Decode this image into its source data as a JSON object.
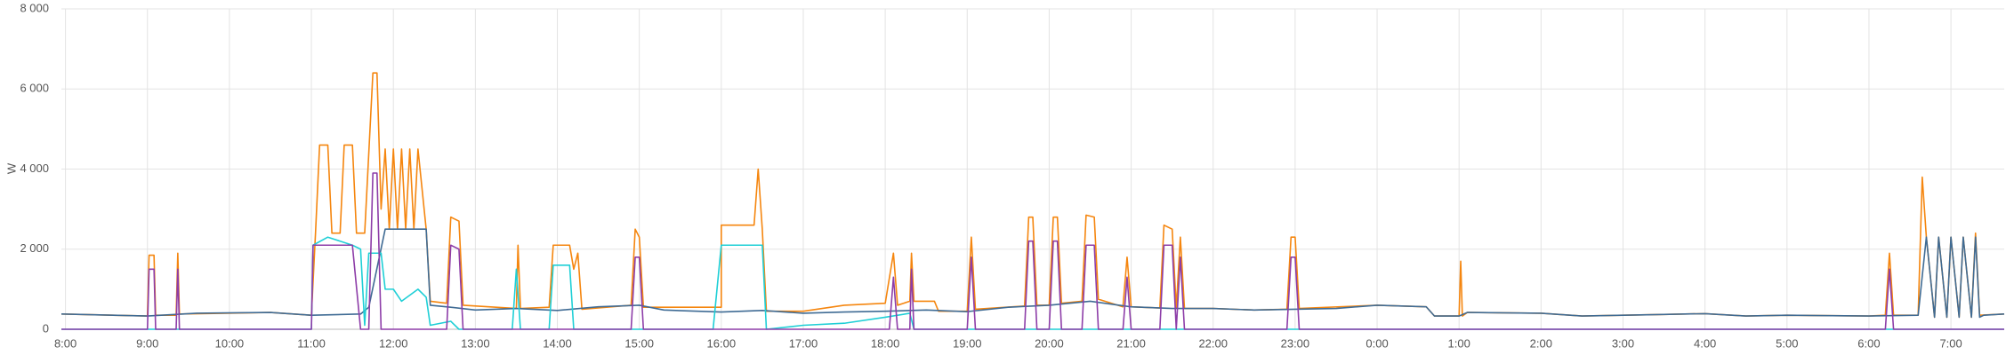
{
  "chart_data": {
    "type": "line",
    "y_label": "W",
    "xlim": [
      7.95,
      31.65
    ],
    "ylim": [
      0,
      8000
    ],
    "xticks": [
      {
        "value": 8,
        "label": "8:00"
      },
      {
        "value": 9,
        "label": "9:00"
      },
      {
        "value": 10,
        "label": "10:00"
      },
      {
        "value": 11,
        "label": "11:00"
      },
      {
        "value": 12,
        "label": "12:00"
      },
      {
        "value": 13,
        "label": "13:00"
      },
      {
        "value": 14,
        "label": "14:00"
      },
      {
        "value": 15,
        "label": "15:00"
      },
      {
        "value": 16,
        "label": "16:00"
      },
      {
        "value": 17,
        "label": "17:00"
      },
      {
        "value": 18,
        "label": "18:00"
      },
      {
        "value": 19,
        "label": "19:00"
      },
      {
        "value": 20,
        "label": "20:00"
      },
      {
        "value": 21,
        "label": "21:00"
      },
      {
        "value": 22,
        "label": "22:00"
      },
      {
        "value": 23,
        "label": "23:00"
      },
      {
        "value": 24,
        "label": "0:00"
      },
      {
        "value": 25,
        "label": "1:00"
      },
      {
        "value": 26,
        "label": "2:00"
      },
      {
        "value": 27,
        "label": "3:00"
      },
      {
        "value": 28,
        "label": "4:00"
      },
      {
        "value": 29,
        "label": "5:00"
      },
      {
        "value": 30,
        "label": "6:00"
      },
      {
        "value": 31,
        "label": "7:00"
      }
    ],
    "yticks": [
      0,
      {
        "value": 2000,
        "label": "2 000"
      },
      {
        "value": 4000,
        "label": "4 000"
      },
      {
        "value": 6000,
        "label": "6 000"
      },
      {
        "value": 8000,
        "label": "8 000"
      }
    ],
    "grid": true,
    "series": [
      {
        "color": "#f5860f",
        "x": [
          7.95,
          9.0,
          9.02,
          9.08,
          9.1,
          9.35,
          9.37,
          9.39,
          10.5,
          11.0,
          11.05,
          11.1,
          11.2,
          11.25,
          11.35,
          11.4,
          11.5,
          11.55,
          11.65,
          11.75,
          11.8,
          11.85,
          11.9,
          11.95,
          12.0,
          12.05,
          12.1,
          12.15,
          12.2,
          12.25,
          12.3,
          12.4,
          12.45,
          12.65,
          12.7,
          12.8,
          12.85,
          13.5,
          13.52,
          13.55,
          13.9,
          13.95,
          14.15,
          14.2,
          14.25,
          14.3,
          14.9,
          14.95,
          15.0,
          15.05,
          16.0,
          16.0,
          16.4,
          16.45,
          16.5,
          16.55,
          17.0,
          17.5,
          18.0,
          18.1,
          18.15,
          18.3,
          18.32,
          18.35,
          18.6,
          18.65,
          19.0,
          19.05,
          19.1,
          19.7,
          19.75,
          19.8,
          19.85,
          20.0,
          20.05,
          20.1,
          20.15,
          20.4,
          20.45,
          20.55,
          20.6,
          20.9,
          20.95,
          21.0,
          21.35,
          21.4,
          21.5,
          21.55,
          21.6,
          21.65,
          22.0,
          22.5,
          22.9,
          22.95,
          23.0,
          23.05,
          24.0,
          24.6,
          24.7,
          25.0,
          25.02,
          25.04,
          25.1,
          26.0,
          26.5,
          27.5,
          28.0,
          28.5,
          29.0,
          30.0,
          30.2,
          30.25,
          30.3,
          30.6,
          30.65,
          30.7,
          30.8,
          30.85,
          30.95,
          31.0,
          31.1,
          31.15,
          31.25,
          31.3,
          31.35,
          31.65
        ],
        "values": [
          380,
          330,
          1850,
          1850,
          350,
          350,
          1900,
          380,
          420,
          350,
          2400,
          4600,
          4600,
          2400,
          2400,
          4600,
          4600,
          2400,
          2400,
          6400,
          6400,
          3000,
          4500,
          2500,
          4500,
          2500,
          4500,
          2500,
          4500,
          2500,
          4500,
          2500,
          700,
          650,
          2800,
          2700,
          600,
          520,
          2100,
          520,
          550,
          2100,
          2100,
          1500,
          1900,
          500,
          600,
          2500,
          2300,
          550,
          550,
          2600,
          2600,
          4000,
          2500,
          450,
          450,
          600,
          650,
          1900,
          600,
          700,
          1900,
          700,
          700,
          450,
          450,
          2300,
          500,
          580,
          2800,
          2800,
          600,
          600,
          2800,
          2800,
          650,
          700,
          2850,
          2800,
          750,
          560,
          1800,
          560,
          530,
          2600,
          2500,
          530,
          2300,
          520,
          520,
          480,
          500,
          2300,
          2300,
          520,
          600,
          560,
          330,
          330,
          1700,
          330,
          420,
          400,
          330,
          370,
          390,
          330,
          350,
          330,
          350,
          1900,
          350,
          350,
          3800,
          2300,
          300,
          2300,
          300,
          2300,
          300,
          2300,
          300,
          2400,
          350,
          380
        ]
      },
      {
        "color": "#3f6b94",
        "x": [
          7.95,
          9.0,
          9.6,
          10.5,
          11.0,
          11.6,
          11.7,
          11.9,
          12.4,
          12.45,
          12.7,
          13.0,
          13.5,
          14.0,
          14.5,
          15.0,
          15.3,
          16.0,
          16.5,
          17.0,
          17.5,
          18.0,
          18.5,
          19.0,
          19.5,
          20.0,
          20.5,
          21.0,
          21.5,
          22.0,
          22.5,
          23.0,
          23.5,
          24.0,
          24.6,
          24.7,
          25.0,
          25.1,
          26.0,
          26.5,
          27.5,
          28.0,
          28.5,
          29.0,
          30.0,
          30.6,
          30.7,
          30.8,
          30.85,
          30.95,
          31.0,
          31.1,
          31.15,
          31.25,
          31.3,
          31.35,
          31.4,
          31.65
        ],
        "values": [
          380,
          330,
          400,
          420,
          350,
          380,
          550,
          2500,
          2500,
          600,
          550,
          480,
          520,
          470,
          560,
          600,
          480,
          430,
          470,
          400,
          430,
          450,
          480,
          440,
          550,
          600,
          700,
          560,
          520,
          520,
          480,
          500,
          520,
          600,
          560,
          330,
          330,
          420,
          400,
          330,
          370,
          390,
          330,
          350,
          330,
          350,
          2300,
          300,
          2300,
          300,
          2300,
          300,
          2300,
          300,
          2300,
          300,
          350,
          380
        ]
      },
      {
        "color": "#1fcfd6",
        "x": [
          7.95,
          11.0,
          11.02,
          11.2,
          11.5,
          11.6,
          11.65,
          11.7,
          11.85,
          11.9,
          12.0,
          12.1,
          12.3,
          12.4,
          12.45,
          12.7,
          12.8,
          13.45,
          13.5,
          13.55,
          13.9,
          13.95,
          14.15,
          14.2,
          15.9,
          16.0,
          16.5,
          16.55,
          17.0,
          17.5,
          18.0,
          18.3,
          18.35,
          31.65
        ],
        "values": [
          0,
          0,
          2100,
          2300,
          2100,
          2000,
          100,
          1900,
          1900,
          1000,
          1000,
          700,
          1000,
          800,
          100,
          200,
          0,
          0,
          1500,
          0,
          0,
          1600,
          1600,
          0,
          0,
          2100,
          2100,
          0,
          100,
          150,
          300,
          400,
          0,
          0
        ]
      },
      {
        "color": "#8d3da8",
        "x": [
          7.95,
          9.0,
          9.02,
          9.08,
          9.1,
          9.35,
          9.37,
          9.39,
          11.0,
          11.02,
          11.5,
          11.6,
          11.7,
          11.75,
          11.8,
          11.85,
          12.65,
          12.7,
          12.8,
          12.85,
          14.9,
          14.95,
          15.0,
          15.05,
          18.05,
          18.1,
          18.15,
          18.3,
          18.32,
          18.35,
          19.0,
          19.05,
          19.1,
          19.7,
          19.75,
          19.8,
          19.85,
          20.0,
          20.05,
          20.1,
          20.15,
          20.4,
          20.45,
          20.55,
          20.6,
          20.9,
          20.95,
          21.0,
          21.35,
          21.4,
          21.5,
          21.55,
          21.6,
          21.65,
          22.9,
          22.95,
          23.0,
          23.05,
          30.2,
          30.25,
          30.3,
          31.65
        ],
        "values": [
          0,
          0,
          1500,
          1500,
          0,
          0,
          1500,
          0,
          0,
          2100,
          2100,
          0,
          0,
          3900,
          3900,
          0,
          0,
          2100,
          2000,
          0,
          0,
          1800,
          1800,
          0,
          0,
          1300,
          0,
          0,
          1500,
          0,
          0,
          1800,
          0,
          0,
          2200,
          2200,
          0,
          0,
          2200,
          2200,
          0,
          0,
          2100,
          2100,
          0,
          0,
          1300,
          0,
          0,
          2100,
          2100,
          0,
          1800,
          0,
          0,
          1800,
          1800,
          0,
          0,
          1500,
          0,
          0
        ]
      }
    ]
  }
}
